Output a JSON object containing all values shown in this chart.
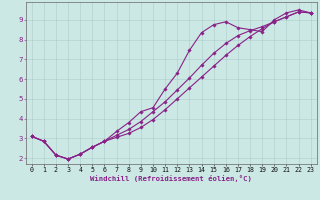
{
  "xlabel": "Windchill (Refroidissement éolien,°C)",
  "bg_color": "#cce8e4",
  "line_color": "#882288",
  "xlim": [
    -0.5,
    23.5
  ],
  "ylim": [
    1.7,
    9.9
  ],
  "xticks": [
    0,
    1,
    2,
    3,
    4,
    5,
    6,
    7,
    8,
    9,
    10,
    11,
    12,
    13,
    14,
    15,
    16,
    17,
    18,
    19,
    20,
    21,
    22,
    23
  ],
  "yticks": [
    2,
    3,
    4,
    5,
    6,
    7,
    8,
    9
  ],
  "grid_color": "#aacccc",
  "line1_x": [
    0,
    1,
    2,
    3,
    4,
    5,
    6,
    7,
    8,
    9,
    10,
    11,
    12,
    13,
    14,
    15,
    16,
    17,
    18,
    19,
    20,
    21,
    22,
    23
  ],
  "line1_y": [
    3.1,
    2.85,
    2.15,
    1.95,
    2.2,
    2.55,
    2.85,
    3.35,
    3.8,
    4.35,
    4.55,
    5.5,
    6.3,
    7.45,
    8.35,
    8.75,
    8.9,
    8.6,
    8.5,
    8.4,
    9.0,
    9.35,
    9.5,
    9.35
  ],
  "line2_x": [
    0,
    1,
    2,
    3,
    4,
    5,
    6,
    7,
    8,
    9,
    10,
    11,
    12,
    13,
    14,
    15,
    16,
    17,
    18,
    19,
    20,
    21,
    22,
    23
  ],
  "line2_y": [
    3.1,
    2.85,
    2.15,
    1.95,
    2.2,
    2.55,
    2.85,
    3.15,
    3.45,
    3.85,
    4.35,
    4.85,
    5.45,
    6.05,
    6.7,
    7.3,
    7.8,
    8.2,
    8.45,
    8.65,
    8.9,
    9.15,
    9.4,
    9.35
  ],
  "line3_x": [
    0,
    1,
    2,
    3,
    4,
    5,
    6,
    7,
    8,
    9,
    10,
    11,
    12,
    13,
    14,
    15,
    16,
    17,
    18,
    19,
    20,
    21,
    22,
    23
  ],
  "line3_y": [
    3.1,
    2.85,
    2.15,
    1.95,
    2.2,
    2.55,
    2.85,
    3.05,
    3.25,
    3.55,
    3.95,
    4.45,
    5.0,
    5.55,
    6.1,
    6.65,
    7.2,
    7.7,
    8.15,
    8.55,
    8.9,
    9.15,
    9.4,
    9.35
  ],
  "marker": "D",
  "markersize": 1.8,
  "linewidth": 0.8,
  "tick_fontsize": 4.8,
  "xlabel_fontsize": 5.2
}
